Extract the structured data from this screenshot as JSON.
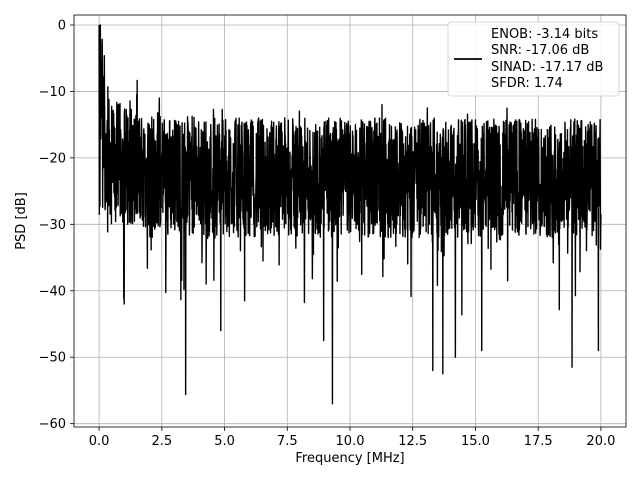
{
  "chart_data": {
    "type": "line",
    "title": "",
    "xlabel": "Frequency [MHz]",
    "ylabel": "PSD [dB]",
    "xlim": [
      -1,
      21
    ],
    "ylim": [
      -60.5,
      1.5
    ],
    "xticks": [
      0.0,
      2.5,
      5.0,
      7.5,
      10.0,
      12.5,
      15.0,
      17.5,
      20.0
    ],
    "xtick_labels": [
      "0.0",
      "2.5",
      "5.0",
      "7.5",
      "10.0",
      "12.5",
      "15.0",
      "17.5",
      "20.0"
    ],
    "yticks": [
      0,
      -10,
      -20,
      -30,
      -40,
      -50,
      -60
    ],
    "ytick_labels": [
      "0",
      "−10",
      "−20",
      "−30",
      "−40",
      "−50",
      "−60"
    ],
    "grid": true,
    "legend_position": "top-right",
    "series": [
      {
        "color": "#000000",
        "x_range": [
          0,
          20
        ],
        "typical_range": [
          -33,
          -13
        ],
        "start_peak": 0,
        "notable_dips": [
          {
            "x": 3.45,
            "y": -55.6
          },
          {
            "x": 4.85,
            "y": -46.0
          },
          {
            "x": 9.3,
            "y": -57.0
          },
          {
            "x": 8.95,
            "y": -47.5
          },
          {
            "x": 13.3,
            "y": -52.0
          },
          {
            "x": 13.7,
            "y": -52.5
          },
          {
            "x": 14.2,
            "y": -50.0
          },
          {
            "x": 15.25,
            "y": -49.0
          },
          {
            "x": 18.85,
            "y": -51.5
          },
          {
            "x": 19.9,
            "y": -49.0
          },
          {
            "x": 1.0,
            "y": -42.0
          },
          {
            "x": 5.8,
            "y": -41.5
          }
        ],
        "notable_peaks": [
          {
            "x": 0.05,
            "y": 0
          },
          {
            "x": 0.35,
            "y": -9.3
          },
          {
            "x": 1.5,
            "y": -10.5
          },
          {
            "x": 2.4,
            "y": -11.0
          }
        ]
      }
    ],
    "legend": [
      "ENOB: -3.14 bits",
      "SNR: -17.06 dB",
      "SINAD: -17.17 dB",
      "SFDR: 1.74"
    ]
  }
}
